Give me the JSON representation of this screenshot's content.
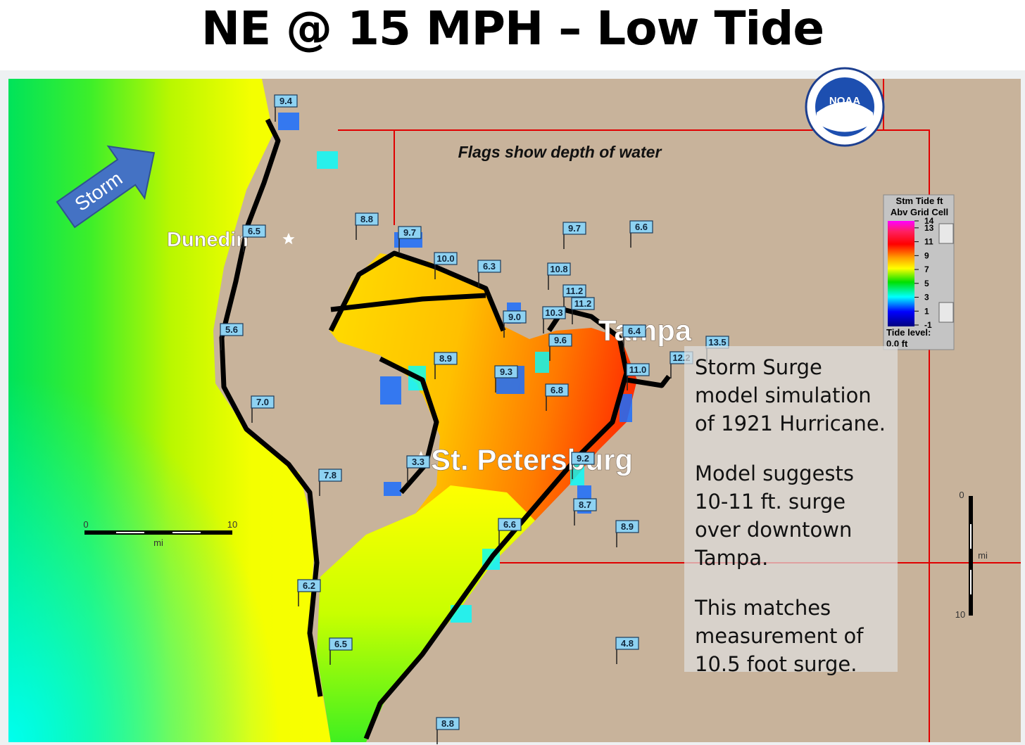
{
  "title": "NE @ 15 MPH – Low Tide",
  "map": {
    "storm_label": "Storm",
    "caption": "Flags show depth of water",
    "logo": "NOAA",
    "cities": [
      "Dunedin",
      "Tampa",
      "St. Petersburg"
    ],
    "flags": [
      "9.4",
      "8.8",
      "6.5",
      "9.7",
      "10.0",
      "6.3",
      "9.7",
      "6.6",
      "10.8",
      "11.2",
      "11.2",
      "10.3",
      "9.0",
      "6.4",
      "13.5",
      "9.6",
      "5.6",
      "8.9",
      "12.2",
      "11.0",
      "9.3",
      "6.8",
      "7.0",
      "3.3",
      "9.2",
      "7.8",
      "8.7",
      "6.6",
      "8.9",
      "6.2",
      "6.5",
      "4.8",
      "8.8"
    ],
    "legend": {
      "title": [
        "Stm Tide ft",
        "Abv Grid Cell"
      ],
      "ticks": [
        14,
        13,
        11,
        9,
        7,
        5,
        3,
        1,
        -1
      ],
      "tide_level_label": "Tide level:",
      "tide_level": "0.0 ft"
    },
    "scale_h": {
      "start": "0",
      "end": "10",
      "unit": "mi"
    },
    "scale_v": {
      "start": "0",
      "end": "10",
      "unit": "mi"
    }
  },
  "note": {
    "paragraphs": [
      "Storm Surge model simulation of 1921 Hurricane.",
      "Model suggests 10-11 ft. surge over downtown Tampa.",
      "This matches measurement of 10.5 foot surge."
    ]
  }
}
